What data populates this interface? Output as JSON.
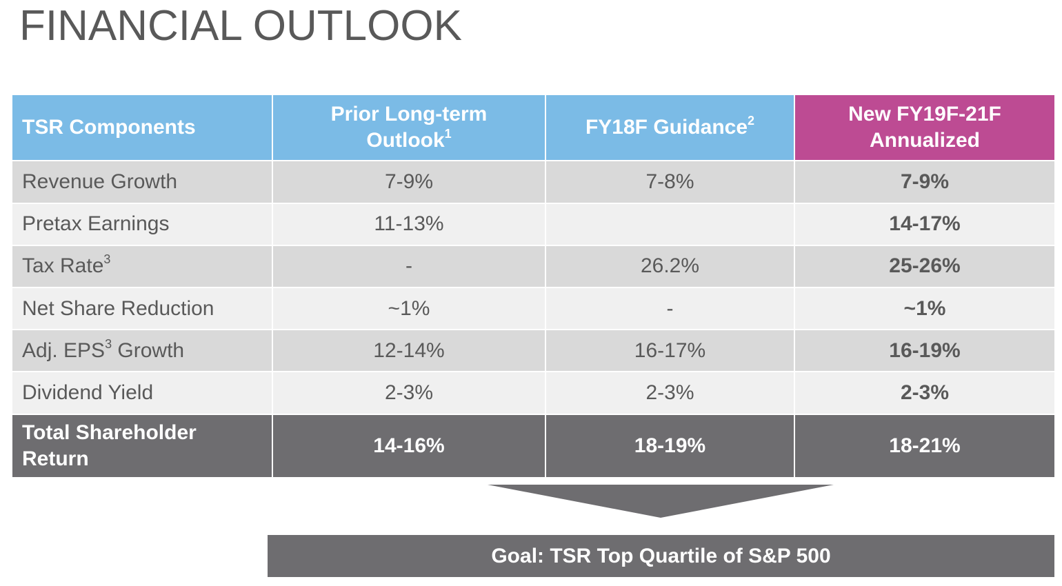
{
  "title": "FINANCIAL OUTLOOK",
  "colors": {
    "header_blue": "#7bbbe6",
    "header_magenta": "#bd4b93",
    "total_gray": "#6e6d70",
    "row_shade": "#d9d9d9",
    "row_light": "#f0f0f0",
    "title_text": "#595959"
  },
  "table": {
    "headers": [
      {
        "text": "TSR Components",
        "sup": ""
      },
      {
        "line1": "Prior Long-term",
        "line2": "Outlook",
        "sup": "1"
      },
      {
        "text": "FY18F Guidance",
        "sup": "2"
      },
      {
        "line1": "New FY19F-21F",
        "line2": "Annualized"
      }
    ],
    "rows": [
      {
        "label": "Revenue Growth",
        "label_sup": "",
        "label_suffix": "",
        "prior": "7-9%",
        "fy18": "7-8%",
        "new": "7-9%"
      },
      {
        "label": "Pretax Earnings",
        "label_sup": "",
        "label_suffix": "",
        "prior": "11-13%",
        "fy18": "",
        "new": "14-17%"
      },
      {
        "label": "Tax Rate",
        "label_sup": "3",
        "label_suffix": "",
        "prior": "-",
        "fy18": "26.2%",
        "new": "25-26%"
      },
      {
        "label": "Net Share Reduction",
        "label_sup": "",
        "label_suffix": "",
        "prior": "~1%",
        "fy18": "-",
        "new": "~1%"
      },
      {
        "label": "Adj. EPS",
        "label_sup": "3",
        "label_suffix": " Growth",
        "prior": "12-14%",
        "fy18": "16-17%",
        "new": "16-19%"
      },
      {
        "label": "Dividend Yield",
        "label_sup": "",
        "label_suffix": "",
        "prior": "2-3%",
        "fy18": "2-3%",
        "new": "2-3%"
      }
    ],
    "total": {
      "label_line1": "Total Shareholder",
      "label_line2": "Return",
      "prior": "14-16%",
      "fy18": "18-19%",
      "new": "18-21%"
    }
  },
  "goal": "Goal: TSR Top Quartile of S&P 500"
}
